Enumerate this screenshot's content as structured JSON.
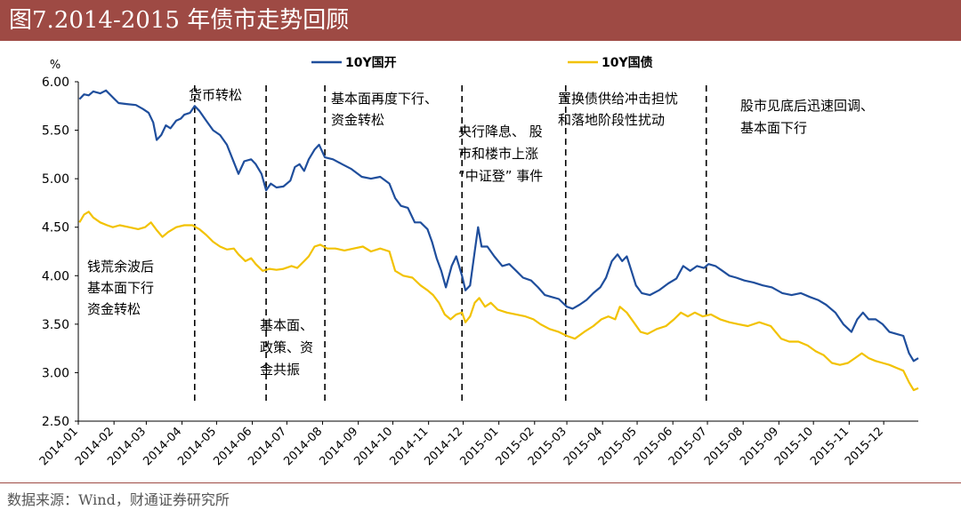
{
  "header": {
    "title": "图7.2014-2015 年债市走势回顾"
  },
  "footer": {
    "source": "数据来源：Wind，财通证券研究所"
  },
  "colors": {
    "title_bg": "#9e4a44",
    "series_10y_cdb": "#1f4e9c",
    "series_10y_gov": "#f2c200"
  },
  "chart_data": {
    "type": "line",
    "title": "",
    "xlabel": "",
    "ylabel": "%",
    "ylim": [
      2.5,
      6.0
    ],
    "yticks": [
      "6.00",
      "5.50",
      "5.00",
      "4.50",
      "4.00",
      "3.50",
      "3.00",
      "2.50"
    ],
    "grid": false,
    "legend_position": "top",
    "categories": [
      "2014-01",
      "2014-02",
      "2014-03",
      "2014-04",
      "2014-05",
      "2014-06",
      "2014-07",
      "2014-08",
      "2014-09",
      "2014-10",
      "2014-11",
      "2014-12",
      "2015-01",
      "2015-02",
      "2015-03",
      "2015-04",
      "2015-05",
      "2015-06",
      "2015-07",
      "2015-08",
      "2015-09",
      "2015-10",
      "2015-11",
      "2015-12"
    ],
    "x_end_label": "2015-12-31",
    "series": [
      {
        "name": "10Y国开",
        "color": "#1f4e9c",
        "points": [
          [
            "2014-01-02",
            5.82
          ],
          [
            "2014-01-06",
            5.87
          ],
          [
            "2014-01-10",
            5.86
          ],
          [
            "2014-01-14",
            5.9
          ],
          [
            "2014-01-20",
            5.88
          ],
          [
            "2014-01-25",
            5.91
          ],
          [
            "2014-01-30",
            5.85
          ],
          [
            "2014-02-05",
            5.78
          ],
          [
            "2014-02-12",
            5.77
          ],
          [
            "2014-02-20",
            5.76
          ],
          [
            "2014-02-26",
            5.72
          ],
          [
            "2014-03-03",
            5.68
          ],
          [
            "2014-03-07",
            5.58
          ],
          [
            "2014-03-10",
            5.4
          ],
          [
            "2014-03-14",
            5.45
          ],
          [
            "2014-03-18",
            5.55
          ],
          [
            "2014-03-22",
            5.52
          ],
          [
            "2014-03-27",
            5.6
          ],
          [
            "2014-03-31",
            5.62
          ],
          [
            "2014-04-03",
            5.66
          ],
          [
            "2014-04-08",
            5.68
          ],
          [
            "2014-04-12",
            5.75
          ],
          [
            "2014-04-16",
            5.7
          ],
          [
            "2014-04-22",
            5.6
          ],
          [
            "2014-04-28",
            5.5
          ],
          [
            "2014-05-04",
            5.45
          ],
          [
            "2014-05-10",
            5.35
          ],
          [
            "2014-05-15",
            5.2
          ],
          [
            "2014-05-20",
            5.05
          ],
          [
            "2014-05-25",
            5.18
          ],
          [
            "2014-05-31",
            5.2
          ],
          [
            "2014-06-04",
            5.15
          ],
          [
            "2014-06-09",
            5.05
          ],
          [
            "2014-06-13",
            4.88
          ],
          [
            "2014-06-17",
            4.95
          ],
          [
            "2014-06-22",
            4.91
          ],
          [
            "2014-06-28",
            4.92
          ],
          [
            "2014-07-04",
            4.98
          ],
          [
            "2014-07-08",
            5.12
          ],
          [
            "2014-07-12",
            5.15
          ],
          [
            "2014-07-16",
            5.08
          ],
          [
            "2014-07-20",
            5.2
          ],
          [
            "2014-07-25",
            5.3
          ],
          [
            "2014-07-29",
            5.35
          ],
          [
            "2014-08-03",
            5.22
          ],
          [
            "2014-08-10",
            5.2
          ],
          [
            "2014-08-18",
            5.15
          ],
          [
            "2014-08-26",
            5.1
          ],
          [
            "2014-09-04",
            5.02
          ],
          [
            "2014-09-12",
            5.0
          ],
          [
            "2014-09-20",
            5.02
          ],
          [
            "2014-09-28",
            4.95
          ],
          [
            "2014-10-03",
            4.8
          ],
          [
            "2014-10-08",
            4.72
          ],
          [
            "2014-10-14",
            4.7
          ],
          [
            "2014-10-20",
            4.55
          ],
          [
            "2014-10-25",
            4.55
          ],
          [
            "2014-10-31",
            4.48
          ],
          [
            "2014-11-04",
            4.35
          ],
          [
            "2014-11-08",
            4.18
          ],
          [
            "2014-11-12",
            4.05
          ],
          [
            "2014-11-16",
            3.88
          ],
          [
            "2014-11-21",
            4.1
          ],
          [
            "2014-11-25",
            4.2
          ],
          [
            "2014-11-30",
            4.0
          ],
          [
            "2014-12-03",
            3.85
          ],
          [
            "2014-12-07",
            3.9
          ],
          [
            "2014-12-11",
            4.25
          ],
          [
            "2014-12-14",
            4.5
          ],
          [
            "2014-12-17",
            4.3
          ],
          [
            "2014-12-22",
            4.3
          ],
          [
            "2014-12-28",
            4.2
          ],
          [
            "2015-01-04",
            4.1
          ],
          [
            "2015-01-10",
            4.12
          ],
          [
            "2015-01-16",
            4.05
          ],
          [
            "2015-01-22",
            3.98
          ],
          [
            "2015-01-29",
            3.95
          ],
          [
            "2015-02-04",
            3.88
          ],
          [
            "2015-02-10",
            3.8
          ],
          [
            "2015-02-16",
            3.78
          ],
          [
            "2015-02-22",
            3.76
          ],
          [
            "2015-03-01",
            3.68
          ],
          [
            "2015-03-06",
            3.66
          ],
          [
            "2015-03-12",
            3.7
          ],
          [
            "2015-03-18",
            3.75
          ],
          [
            "2015-03-24",
            3.82
          ],
          [
            "2015-03-30",
            3.88
          ],
          [
            "2015-04-04",
            3.98
          ],
          [
            "2015-04-09",
            4.15
          ],
          [
            "2015-04-14",
            4.22
          ],
          [
            "2015-04-18",
            4.15
          ],
          [
            "2015-04-22",
            4.2
          ],
          [
            "2015-04-26",
            4.05
          ],
          [
            "2015-04-30",
            3.9
          ],
          [
            "2015-05-05",
            3.82
          ],
          [
            "2015-05-12",
            3.8
          ],
          [
            "2015-05-20",
            3.85
          ],
          [
            "2015-05-28",
            3.92
          ],
          [
            "2015-06-04",
            3.97
          ],
          [
            "2015-06-10",
            4.1
          ],
          [
            "2015-06-16",
            4.05
          ],
          [
            "2015-06-22",
            4.1
          ],
          [
            "2015-06-28",
            4.08
          ],
          [
            "2015-07-02",
            4.12
          ],
          [
            "2015-07-08",
            4.1
          ],
          [
            "2015-07-14",
            4.05
          ],
          [
            "2015-07-20",
            4.0
          ],
          [
            "2015-07-26",
            3.98
          ],
          [
            "2015-08-02",
            3.95
          ],
          [
            "2015-08-10",
            3.93
          ],
          [
            "2015-08-18",
            3.9
          ],
          [
            "2015-08-26",
            3.88
          ],
          [
            "2015-09-04",
            3.82
          ],
          [
            "2015-09-12",
            3.8
          ],
          [
            "2015-09-20",
            3.82
          ],
          [
            "2015-09-28",
            3.78
          ],
          [
            "2015-10-05",
            3.75
          ],
          [
            "2015-10-12",
            3.7
          ],
          [
            "2015-10-20",
            3.62
          ],
          [
            "2015-10-27",
            3.5
          ],
          [
            "2015-11-03",
            3.42
          ],
          [
            "2015-11-08",
            3.55
          ],
          [
            "2015-11-13",
            3.62
          ],
          [
            "2015-11-18",
            3.55
          ],
          [
            "2015-11-24",
            3.55
          ],
          [
            "2015-11-30",
            3.5
          ],
          [
            "2015-12-06",
            3.42
          ],
          [
            "2015-12-12",
            3.4
          ],
          [
            "2015-12-18",
            3.38
          ],
          [
            "2015-12-23",
            3.2
          ],
          [
            "2015-12-27",
            3.12
          ],
          [
            "2015-12-31",
            3.15
          ]
        ]
      },
      {
        "name": "10Y国债",
        "color": "#f2c200",
        "points": [
          [
            "2014-01-02",
            4.55
          ],
          [
            "2014-01-06",
            4.63
          ],
          [
            "2014-01-10",
            4.66
          ],
          [
            "2014-01-14",
            4.6
          ],
          [
            "2014-01-20",
            4.55
          ],
          [
            "2014-01-26",
            4.52
          ],
          [
            "2014-01-31",
            4.5
          ],
          [
            "2014-02-06",
            4.52
          ],
          [
            "2014-02-14",
            4.5
          ],
          [
            "2014-02-22",
            4.48
          ],
          [
            "2014-02-28",
            4.5
          ],
          [
            "2014-03-05",
            4.55
          ],
          [
            "2014-03-10",
            4.47
          ],
          [
            "2014-03-15",
            4.4
          ],
          [
            "2014-03-20",
            4.45
          ],
          [
            "2014-03-27",
            4.5
          ],
          [
            "2014-04-03",
            4.52
          ],
          [
            "2014-04-10",
            4.52
          ],
          [
            "2014-04-16",
            4.48
          ],
          [
            "2014-04-22",
            4.42
          ],
          [
            "2014-04-28",
            4.35
          ],
          [
            "2014-05-04",
            4.3
          ],
          [
            "2014-05-10",
            4.27
          ],
          [
            "2014-05-16",
            4.28
          ],
          [
            "2014-05-20",
            4.22
          ],
          [
            "2014-05-26",
            4.15
          ],
          [
            "2014-05-31",
            4.18
          ],
          [
            "2014-06-04",
            4.12
          ],
          [
            "2014-06-10",
            4.05
          ],
          [
            "2014-06-16",
            4.07
          ],
          [
            "2014-06-22",
            4.06
          ],
          [
            "2014-06-28",
            4.07
          ],
          [
            "2014-07-05",
            4.1
          ],
          [
            "2014-07-10",
            4.08
          ],
          [
            "2014-07-16",
            4.15
          ],
          [
            "2014-07-20",
            4.2
          ],
          [
            "2014-07-25",
            4.3
          ],
          [
            "2014-07-30",
            4.32
          ],
          [
            "2014-08-05",
            4.28
          ],
          [
            "2014-08-12",
            4.28
          ],
          [
            "2014-08-20",
            4.26
          ],
          [
            "2014-08-28",
            4.28
          ],
          [
            "2014-09-05",
            4.3
          ],
          [
            "2014-09-12",
            4.25
          ],
          [
            "2014-09-20",
            4.28
          ],
          [
            "2014-09-28",
            4.25
          ],
          [
            "2014-10-03",
            4.05
          ],
          [
            "2014-10-10",
            4.0
          ],
          [
            "2014-10-18",
            3.98
          ],
          [
            "2014-10-25",
            3.9
          ],
          [
            "2014-10-31",
            3.85
          ],
          [
            "2014-11-05",
            3.8
          ],
          [
            "2014-11-10",
            3.72
          ],
          [
            "2014-11-15",
            3.6
          ],
          [
            "2014-11-20",
            3.55
          ],
          [
            "2014-11-25",
            3.6
          ],
          [
            "2014-11-30",
            3.62
          ],
          [
            "2014-12-03",
            3.52
          ],
          [
            "2014-12-07",
            3.58
          ],
          [
            "2014-12-11",
            3.72
          ],
          [
            "2014-12-15",
            3.77
          ],
          [
            "2014-12-20",
            3.68
          ],
          [
            "2014-12-25",
            3.72
          ],
          [
            "2014-12-31",
            3.65
          ],
          [
            "2015-01-08",
            3.62
          ],
          [
            "2015-01-16",
            3.6
          ],
          [
            "2015-01-24",
            3.58
          ],
          [
            "2015-01-31",
            3.55
          ],
          [
            "2015-02-06",
            3.5
          ],
          [
            "2015-02-14",
            3.45
          ],
          [
            "2015-02-22",
            3.42
          ],
          [
            "2015-03-01",
            3.38
          ],
          [
            "2015-03-08",
            3.35
          ],
          [
            "2015-03-16",
            3.42
          ],
          [
            "2015-03-24",
            3.48
          ],
          [
            "2015-03-31",
            3.55
          ],
          [
            "2015-04-06",
            3.58
          ],
          [
            "2015-04-12",
            3.55
          ],
          [
            "2015-04-16",
            3.68
          ],
          [
            "2015-04-22",
            3.62
          ],
          [
            "2015-04-28",
            3.52
          ],
          [
            "2015-05-04",
            3.42
          ],
          [
            "2015-05-10",
            3.4
          ],
          [
            "2015-05-18",
            3.45
          ],
          [
            "2015-05-26",
            3.48
          ],
          [
            "2015-06-02",
            3.55
          ],
          [
            "2015-06-08",
            3.62
          ],
          [
            "2015-06-14",
            3.58
          ],
          [
            "2015-06-20",
            3.62
          ],
          [
            "2015-06-27",
            3.58
          ],
          [
            "2015-07-04",
            3.6
          ],
          [
            "2015-07-12",
            3.55
          ],
          [
            "2015-07-20",
            3.52
          ],
          [
            "2015-07-28",
            3.5
          ],
          [
            "2015-08-05",
            3.48
          ],
          [
            "2015-08-15",
            3.52
          ],
          [
            "2015-08-25",
            3.48
          ],
          [
            "2015-09-03",
            3.35
          ],
          [
            "2015-09-10",
            3.32
          ],
          [
            "2015-09-18",
            3.32
          ],
          [
            "2015-09-26",
            3.28
          ],
          [
            "2015-10-03",
            3.22
          ],
          [
            "2015-10-10",
            3.18
          ],
          [
            "2015-10-17",
            3.1
          ],
          [
            "2015-10-24",
            3.08
          ],
          [
            "2015-10-31",
            3.1
          ],
          [
            "2015-11-06",
            3.15
          ],
          [
            "2015-11-12",
            3.2
          ],
          [
            "2015-11-18",
            3.15
          ],
          [
            "2015-11-24",
            3.12
          ],
          [
            "2015-11-30",
            3.1
          ],
          [
            "2015-12-06",
            3.08
          ],
          [
            "2015-12-12",
            3.05
          ],
          [
            "2015-12-18",
            3.02
          ],
          [
            "2015-12-23",
            2.9
          ],
          [
            "2015-12-27",
            2.82
          ],
          [
            "2015-12-31",
            2.84
          ]
        ]
      }
    ],
    "event_lines": [
      "2014-04-12",
      "2014-06-13",
      "2014-08-03",
      "2014-11-30",
      "2015-02-28",
      "2015-06-30"
    ],
    "annotations": [
      {
        "lines": [
          "货币转松"
        ]
      },
      {
        "lines": [
          "基本面再度下行、",
          "资金转松"
        ]
      },
      {
        "lines": [
          "央行降息、 股",
          "市和楼市上涨",
          "“中证登” 事件"
        ]
      },
      {
        "lines": [
          "置换债供给冲击担忧",
          "和落地阶段性扰动"
        ]
      },
      {
        "lines": [
          "股市见底后迅速回调、",
          "基本面下行"
        ]
      },
      {
        "lines": [
          "钱荒余波后",
          "基本面下行",
          "资金转松"
        ]
      },
      {
        "lines": [
          "基本面、",
          "政策、资",
          "金共振"
        ]
      }
    ]
  }
}
